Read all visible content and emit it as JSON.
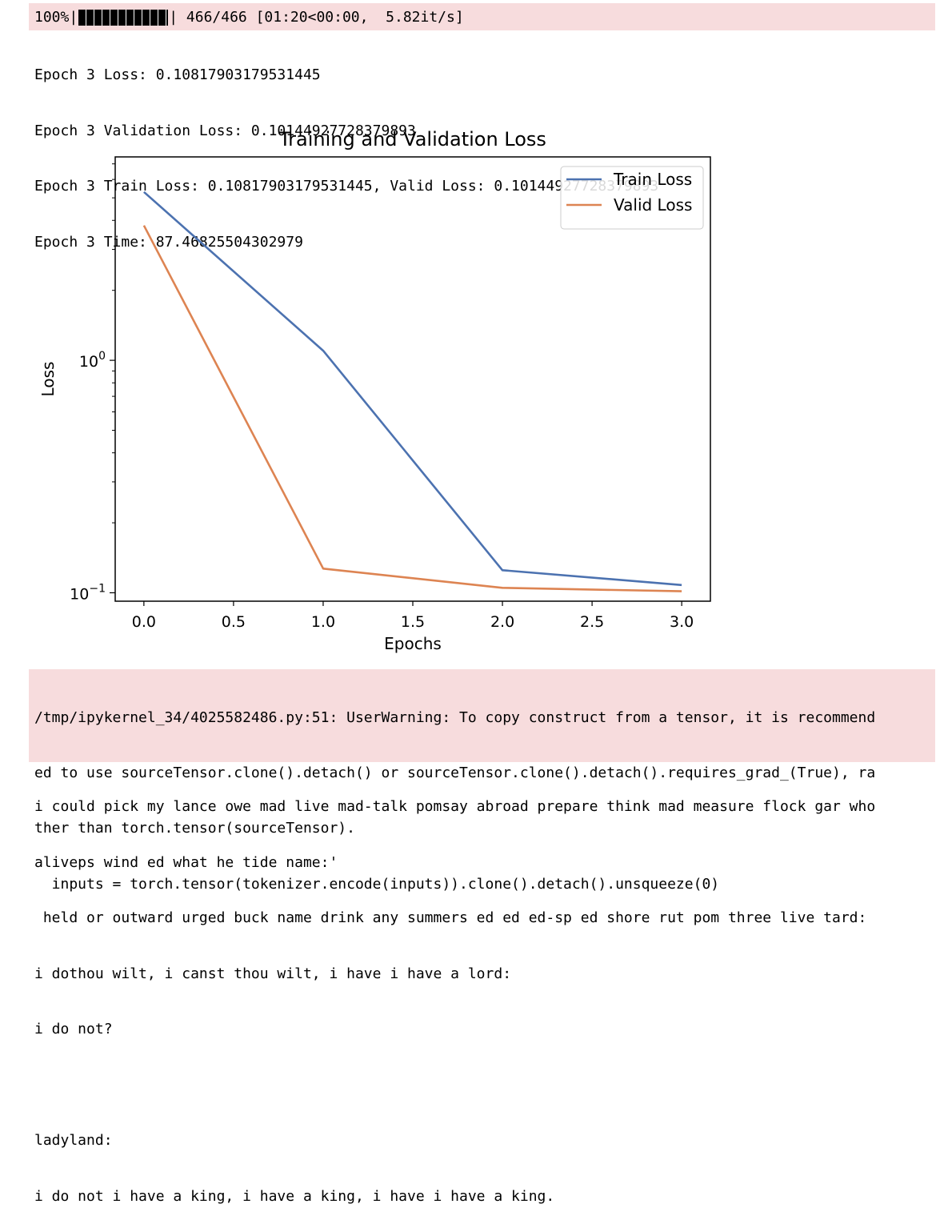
{
  "progress": {
    "percent": "100%",
    "fraction": 1.0,
    "counts": "466/466 [01:20<00:00,  5.82it/s]"
  },
  "epoch_log": [
    "Epoch 3 Loss: 0.10817903179531445",
    "Epoch 3 Validation Loss: 0.10144927728379893",
    "Epoch 3 Train Loss: 0.10817903179531445, Valid Loss: 0.10144927728379893",
    "Epoch 3 Time: 87.46825504302979"
  ],
  "chart_data": {
    "type": "line",
    "title": "Training and Validation Loss",
    "xlabel": "Epochs",
    "ylabel": "Loss",
    "yscale": "log",
    "x": [
      0,
      1,
      2,
      3
    ],
    "xlim": [
      -0.16,
      3.16
    ],
    "ylim": [
      0.092,
      7.5
    ],
    "x_ticks": [
      "0.0",
      "0.5",
      "1.0",
      "1.5",
      "2.0",
      "2.5",
      "3.0"
    ],
    "x_tick_values": [
      0,
      0.5,
      1,
      1.5,
      2,
      2.5,
      3
    ],
    "y_ticks": [
      {
        "value": 1,
        "base": "10",
        "exp": "0"
      },
      {
        "value": 0.1,
        "base": "10",
        "exp": "−1"
      }
    ],
    "grid": false,
    "legend_position": "top-right",
    "series": [
      {
        "name": "Train Loss",
        "color": "#4c72b0",
        "values": [
          5.3,
          1.1,
          0.125,
          0.108
        ]
      },
      {
        "name": "Valid Loss",
        "color": "#dd8452",
        "values": [
          3.8,
          0.127,
          0.105,
          0.1015
        ]
      }
    ]
  },
  "warning_lines": [
    "/tmp/ipykernel_34/4025582486.py:51: UserWarning: To copy construct from a tensor, it is recommend",
    "ed to use sourceTensor.clone().detach() or sourceTensor.clone().detach().requires_grad_(True), ra",
    "ther than torch.tensor(sourceTensor).",
    "  inputs = torch.tensor(tokenizer.encode(inputs)).clone().detach().unsqueeze(0)"
  ],
  "generated_lines": [
    "i could pick my lance owe mad live mad-talk pomsay abroad prepare think mad measure flock gar who",
    "aliveps wind ed what he tide name:'",
    " held or outward urged buck name drink any summers ed ed ed-sp ed shore rut pom three live tard:",
    "i dothou wilt, i canst thou wilt, i have i have a lord:",
    "i do not?",
    "",
    "ladyland:",
    "i do not i have a king, i have a king, i have i have a king."
  ]
}
